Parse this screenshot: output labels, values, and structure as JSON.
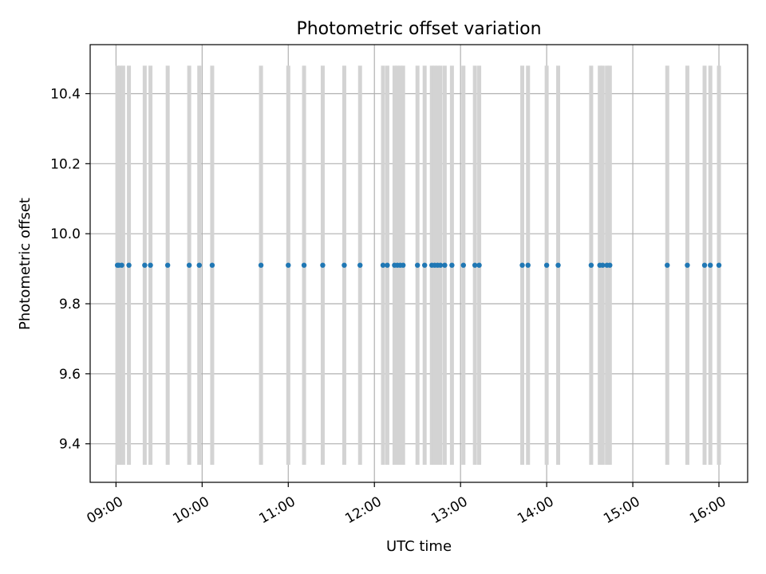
{
  "chart_data": {
    "type": "scatter",
    "title": "Photometric offset variation",
    "xlabel": "UTC time",
    "ylabel": "Photometric offset",
    "xlim": [
      "08:42",
      "16:20"
    ],
    "ylim": [
      9.29,
      10.54
    ],
    "x_ticks": [
      "09:00",
      "10:00",
      "11:00",
      "12:00",
      "13:00",
      "14:00",
      "15:00",
      "16:00"
    ],
    "y_ticks": [
      9.4,
      9.6,
      9.8,
      10.0,
      10.2,
      10.4
    ],
    "y_tick_labels": [
      "9.4",
      "9.6",
      "9.8",
      "10.0",
      "10.2",
      "10.4"
    ],
    "grid": true,
    "points": {
      "color": "#1f77b4",
      "x": [
        "09:01",
        "09:02",
        "09:04",
        "09:09",
        "09:20",
        "09:24",
        "09:36",
        "09:51",
        "09:58",
        "10:07",
        "10:41",
        "11:00",
        "11:11",
        "11:24",
        "11:39",
        "11:50",
        "12:06",
        "12:09",
        "12:14",
        "12:16",
        "12:18",
        "12:20",
        "12:30",
        "12:35",
        "12:40",
        "12:42",
        "12:44",
        "12:46",
        "12:49",
        "12:54",
        "13:02",
        "13:10",
        "13:13",
        "13:43",
        "13:47",
        "14:00",
        "14:08",
        "14:31",
        "14:37",
        "14:39",
        "14:42",
        "14:44",
        "15:24",
        "15:38",
        "15:50",
        "15:54",
        "16:00"
      ],
      "y": [
        9.91,
        9.91,
        9.91,
        9.91,
        9.91,
        9.91,
        9.91,
        9.91,
        9.91,
        9.91,
        9.91,
        9.91,
        9.91,
        9.91,
        9.91,
        9.91,
        9.91,
        9.91,
        9.91,
        9.91,
        9.91,
        9.91,
        9.91,
        9.91,
        9.91,
        9.91,
        9.91,
        9.91,
        9.91,
        9.91,
        9.91,
        9.91,
        9.91,
        9.91,
        9.91,
        9.91,
        9.91,
        9.91,
        9.91,
        9.91,
        9.91,
        9.91,
        9.91,
        9.91,
        9.91,
        9.91,
        9.91
      ]
    },
    "vertical_bands": {
      "color": "#d3d3d3",
      "y_range": [
        9.34,
        10.48
      ],
      "x": [
        "09:01",
        "09:03",
        "09:05",
        "09:09",
        "09:20",
        "09:24",
        "09:36",
        "09:51",
        "09:58",
        "10:07",
        "10:41",
        "11:00",
        "11:11",
        "11:24",
        "11:39",
        "11:50",
        "12:06",
        "12:09",
        "12:14",
        "12:16",
        "12:18",
        "12:20",
        "12:30",
        "12:35",
        "12:40",
        "12:42",
        "12:44",
        "12:46",
        "12:49",
        "12:54",
        "13:02",
        "13:10",
        "13:13",
        "13:43",
        "13:47",
        "14:00",
        "14:08",
        "14:31",
        "14:37",
        "14:39",
        "14:42",
        "14:44",
        "15:24",
        "15:38",
        "15:50",
        "15:54",
        "16:00"
      ]
    }
  }
}
